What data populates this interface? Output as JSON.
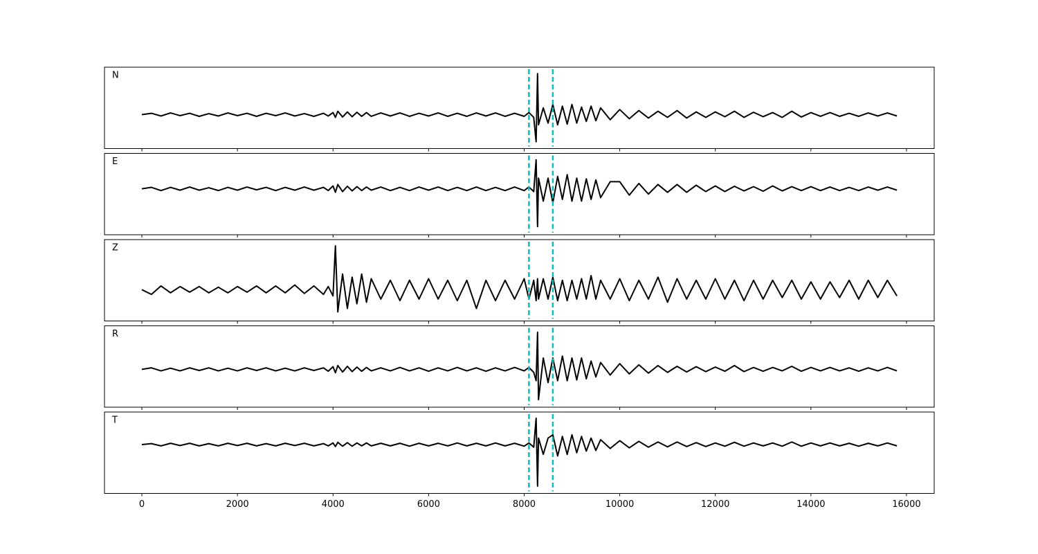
{
  "chart_data": {
    "type": "line",
    "x": [
      0,
      200,
      400,
      600,
      800,
      1000,
      1200,
      1400,
      1600,
      1800,
      2000,
      2200,
      2400,
      2600,
      2800,
      3000,
      3200,
      3400,
      3600,
      3800,
      3900,
      4000,
      4050,
      4100,
      4200,
      4300,
      4400,
      4500,
      4600,
      4700,
      4800,
      5000,
      5200,
      5400,
      5600,
      5800,
      6000,
      6200,
      6400,
      6600,
      6800,
      7000,
      7200,
      7400,
      7600,
      7800,
      8000,
      8100,
      8200,
      8250,
      8280,
      8300,
      8400,
      8500,
      8600,
      8700,
      8800,
      8900,
      9000,
      9100,
      9200,
      9300,
      9400,
      9500,
      9600,
      9800,
      10000,
      10200,
      10400,
      10600,
      10800,
      11000,
      11200,
      11400,
      11600,
      11800,
      12000,
      12200,
      12400,
      12600,
      12800,
      13000,
      13200,
      13400,
      13600,
      13800,
      14000,
      14200,
      14400,
      14600,
      14800,
      15000,
      15200,
      15400,
      15600,
      15800
    ],
    "xlim": [
      -782,
      16580
    ],
    "xticks": [
      0,
      2000,
      4000,
      6000,
      8000,
      10000,
      12000,
      14000,
      16000
    ],
    "vlines": [
      8100,
      8600
    ],
    "vline_color": "#00bfbf",
    "series": [
      {
        "name": "N",
        "color": "#000000",
        "ylim": [
          -1,
          1.4
        ],
        "values": [
          0,
          0.04,
          -0.04,
          0.05,
          -0.03,
          0.04,
          -0.05,
          0.03,
          -0.04,
          0.05,
          -0.03,
          0.04,
          -0.05,
          0.04,
          -0.03,
          0.05,
          -0.04,
          0.03,
          -0.05,
          0.04,
          -0.04,
          0.06,
          -0.08,
          0.1,
          -0.07,
          0.08,
          -0.06,
          0.07,
          -0.05,
          0.06,
          -0.05,
          0.05,
          -0.04,
          0.05,
          -0.05,
          0.04,
          -0.04,
          0.05,
          -0.05,
          0.04,
          -0.05,
          0.05,
          -0.04,
          0.05,
          -0.05,
          0.04,
          -0.05,
          0.06,
          -0.08,
          -0.8,
          1.21,
          -0.3,
          0.2,
          -0.25,
          0.3,
          -0.3,
          0.25,
          -0.28,
          0.3,
          -0.25,
          0.22,
          -0.2,
          0.25,
          -0.18,
          0.2,
          -0.15,
          0.15,
          -0.12,
          0.12,
          -0.1,
          0.1,
          -0.08,
          0.12,
          -0.1,
          0.08,
          -0.08,
          0.08,
          -0.06,
          0.1,
          -0.08,
          0.07,
          -0.06,
          0.06,
          -0.08,
          0.1,
          -0.07,
          0.06,
          -0.05,
          0.06,
          -0.05,
          0.04,
          -0.05,
          0.05,
          -0.04,
          0.05,
          -0.04
        ]
      },
      {
        "name": "E",
        "color": "#000000",
        "ylim": [
          -1.3,
          1
        ],
        "values": [
          0,
          0.04,
          -0.05,
          0.04,
          -0.04,
          0.05,
          -0.04,
          0.03,
          -0.05,
          0.04,
          -0.04,
          0.05,
          -0.03,
          0.04,
          -0.05,
          0.04,
          -0.04,
          0.05,
          -0.04,
          0.04,
          -0.05,
          0.08,
          -0.1,
          0.12,
          -0.08,
          0.07,
          -0.06,
          0.06,
          -0.05,
          0.05,
          -0.04,
          0.05,
          -0.05,
          0.04,
          -0.05,
          0.05,
          -0.04,
          0.05,
          -0.05,
          0.04,
          -0.05,
          0.05,
          -0.05,
          0.04,
          -0.05,
          0.05,
          -0.05,
          0.05,
          -0.08,
          0.82,
          -1.07,
          0.3,
          -0.35,
          0.3,
          -0.4,
          0.35,
          -0.3,
          0.4,
          -0.35,
          0.3,
          -0.35,
          0.28,
          -0.3,
          0.25,
          -0.25,
          0.2,
          0.2,
          -0.18,
          0.15,
          -0.15,
          0.12,
          -0.1,
          0.12,
          -0.1,
          0.1,
          -0.08,
          0.08,
          -0.08,
          0.07,
          -0.06,
          0.06,
          -0.07,
          0.08,
          -0.06,
          0.06,
          -0.05,
          0.06,
          -0.05,
          0.05,
          -0.05,
          0.04,
          -0.05,
          0.05,
          -0.04,
          0.05,
          -0.04
        ]
      },
      {
        "name": "Z",
        "color": "#000000",
        "ylim": [
          -1,
          1.6
        ],
        "values": [
          0,
          -0.15,
          0.12,
          -0.1,
          0.1,
          -0.08,
          0.1,
          -0.1,
          0.08,
          -0.1,
          0.1,
          -0.08,
          0.12,
          -0.1,
          0.12,
          -0.1,
          0.15,
          -0.12,
          0.12,
          -0.15,
          0.1,
          -0.2,
          1.4,
          -0.71,
          0.5,
          -0.6,
          0.4,
          -0.45,
          0.5,
          -0.4,
          0.35,
          -0.3,
          0.3,
          -0.35,
          0.3,
          -0.3,
          0.35,
          -0.3,
          0.3,
          -0.35,
          0.3,
          -0.6,
          0.3,
          -0.35,
          0.3,
          -0.3,
          0.35,
          -0.3,
          0.3,
          -0.35,
          0.35,
          -0.3,
          0.35,
          -0.3,
          0.4,
          -0.35,
          0.3,
          -0.35,
          0.3,
          -0.3,
          0.35,
          -0.3,
          0.45,
          -0.3,
          0.3,
          -0.3,
          0.35,
          -0.35,
          0.3,
          -0.3,
          0.4,
          -0.4,
          0.35,
          -0.3,
          0.3,
          -0.3,
          0.35,
          -0.3,
          0.3,
          -0.35,
          0.3,
          -0.3,
          0.3,
          -0.25,
          0.3,
          -0.3,
          0.25,
          -0.3,
          0.25,
          -0.25,
          0.3,
          -0.3,
          0.3,
          -0.25,
          0.3,
          -0.2
        ]
      },
      {
        "name": "R",
        "color": "#000000",
        "ylim": [
          -1,
          1.15
        ],
        "values": [
          0,
          0.04,
          -0.04,
          0.03,
          -0.04,
          0.04,
          -0.03,
          0.04,
          -0.04,
          0.03,
          -0.04,
          0.04,
          -0.03,
          0.04,
          -0.04,
          0.03,
          -0.04,
          0.04,
          -0.03,
          0.04,
          -0.05,
          0.07,
          -0.09,
          0.1,
          -0.07,
          0.08,
          -0.06,
          0.06,
          -0.05,
          0.05,
          -0.04,
          0.04,
          -0.04,
          0.05,
          -0.04,
          0.04,
          -0.05,
          0.04,
          -0.04,
          0.05,
          -0.04,
          0.04,
          -0.05,
          0.04,
          -0.04,
          0.05,
          -0.04,
          0.05,
          -0.08,
          -0.3,
          0.98,
          -0.8,
          0.3,
          -0.35,
          0.3,
          -0.3,
          0.35,
          -0.3,
          0.3,
          -0.28,
          0.3,
          -0.25,
          0.22,
          -0.2,
          0.18,
          -0.15,
          0.15,
          -0.12,
          0.12,
          -0.1,
          0.1,
          -0.08,
          0.08,
          -0.07,
          0.07,
          -0.06,
          0.06,
          -0.05,
          0.1,
          -0.06,
          0.05,
          -0.05,
          0.05,
          -0.04,
          0.08,
          -0.05,
          0.05,
          -0.04,
          0.05,
          -0.04,
          0.04,
          -0.05,
          0.04,
          -0.04,
          0.05,
          -0.04
        ]
      },
      {
        "name": "T",
        "color": "#000000",
        "ylim": [
          -1.5,
          1
        ],
        "values": [
          0,
          0.03,
          -0.04,
          0.04,
          -0.03,
          0.04,
          -0.04,
          0.03,
          -0.04,
          0.04,
          -0.03,
          0.04,
          -0.04,
          0.03,
          -0.04,
          0.04,
          -0.03,
          0.04,
          -0.04,
          0.03,
          -0.04,
          0.05,
          -0.06,
          0.07,
          -0.05,
          0.06,
          -0.05,
          0.05,
          -0.04,
          0.05,
          -0.04,
          0.04,
          -0.04,
          0.04,
          -0.05,
          0.04,
          -0.04,
          0.04,
          -0.04,
          0.05,
          -0.04,
          0.04,
          -0.04,
          0.05,
          -0.04,
          0.04,
          -0.05,
          0.05,
          -0.08,
          0.81,
          -1.28,
          0.2,
          -0.3,
          0.2,
          0.3,
          -0.35,
          0.25,
          -0.3,
          0.3,
          -0.25,
          0.25,
          -0.2,
          0.2,
          -0.18,
          0.15,
          -0.12,
          0.12,
          -0.1,
          0.1,
          -0.08,
          0.08,
          -0.07,
          0.08,
          -0.06,
          0.06,
          -0.06,
          0.05,
          -0.05,
          0.07,
          -0.05,
          0.05,
          -0.04,
          0.05,
          -0.05,
          0.08,
          -0.05,
          0.05,
          -0.04,
          0.05,
          -0.04,
          0.04,
          -0.05,
          0.04,
          -0.04,
          0.05,
          -0.04
        ]
      }
    ]
  }
}
